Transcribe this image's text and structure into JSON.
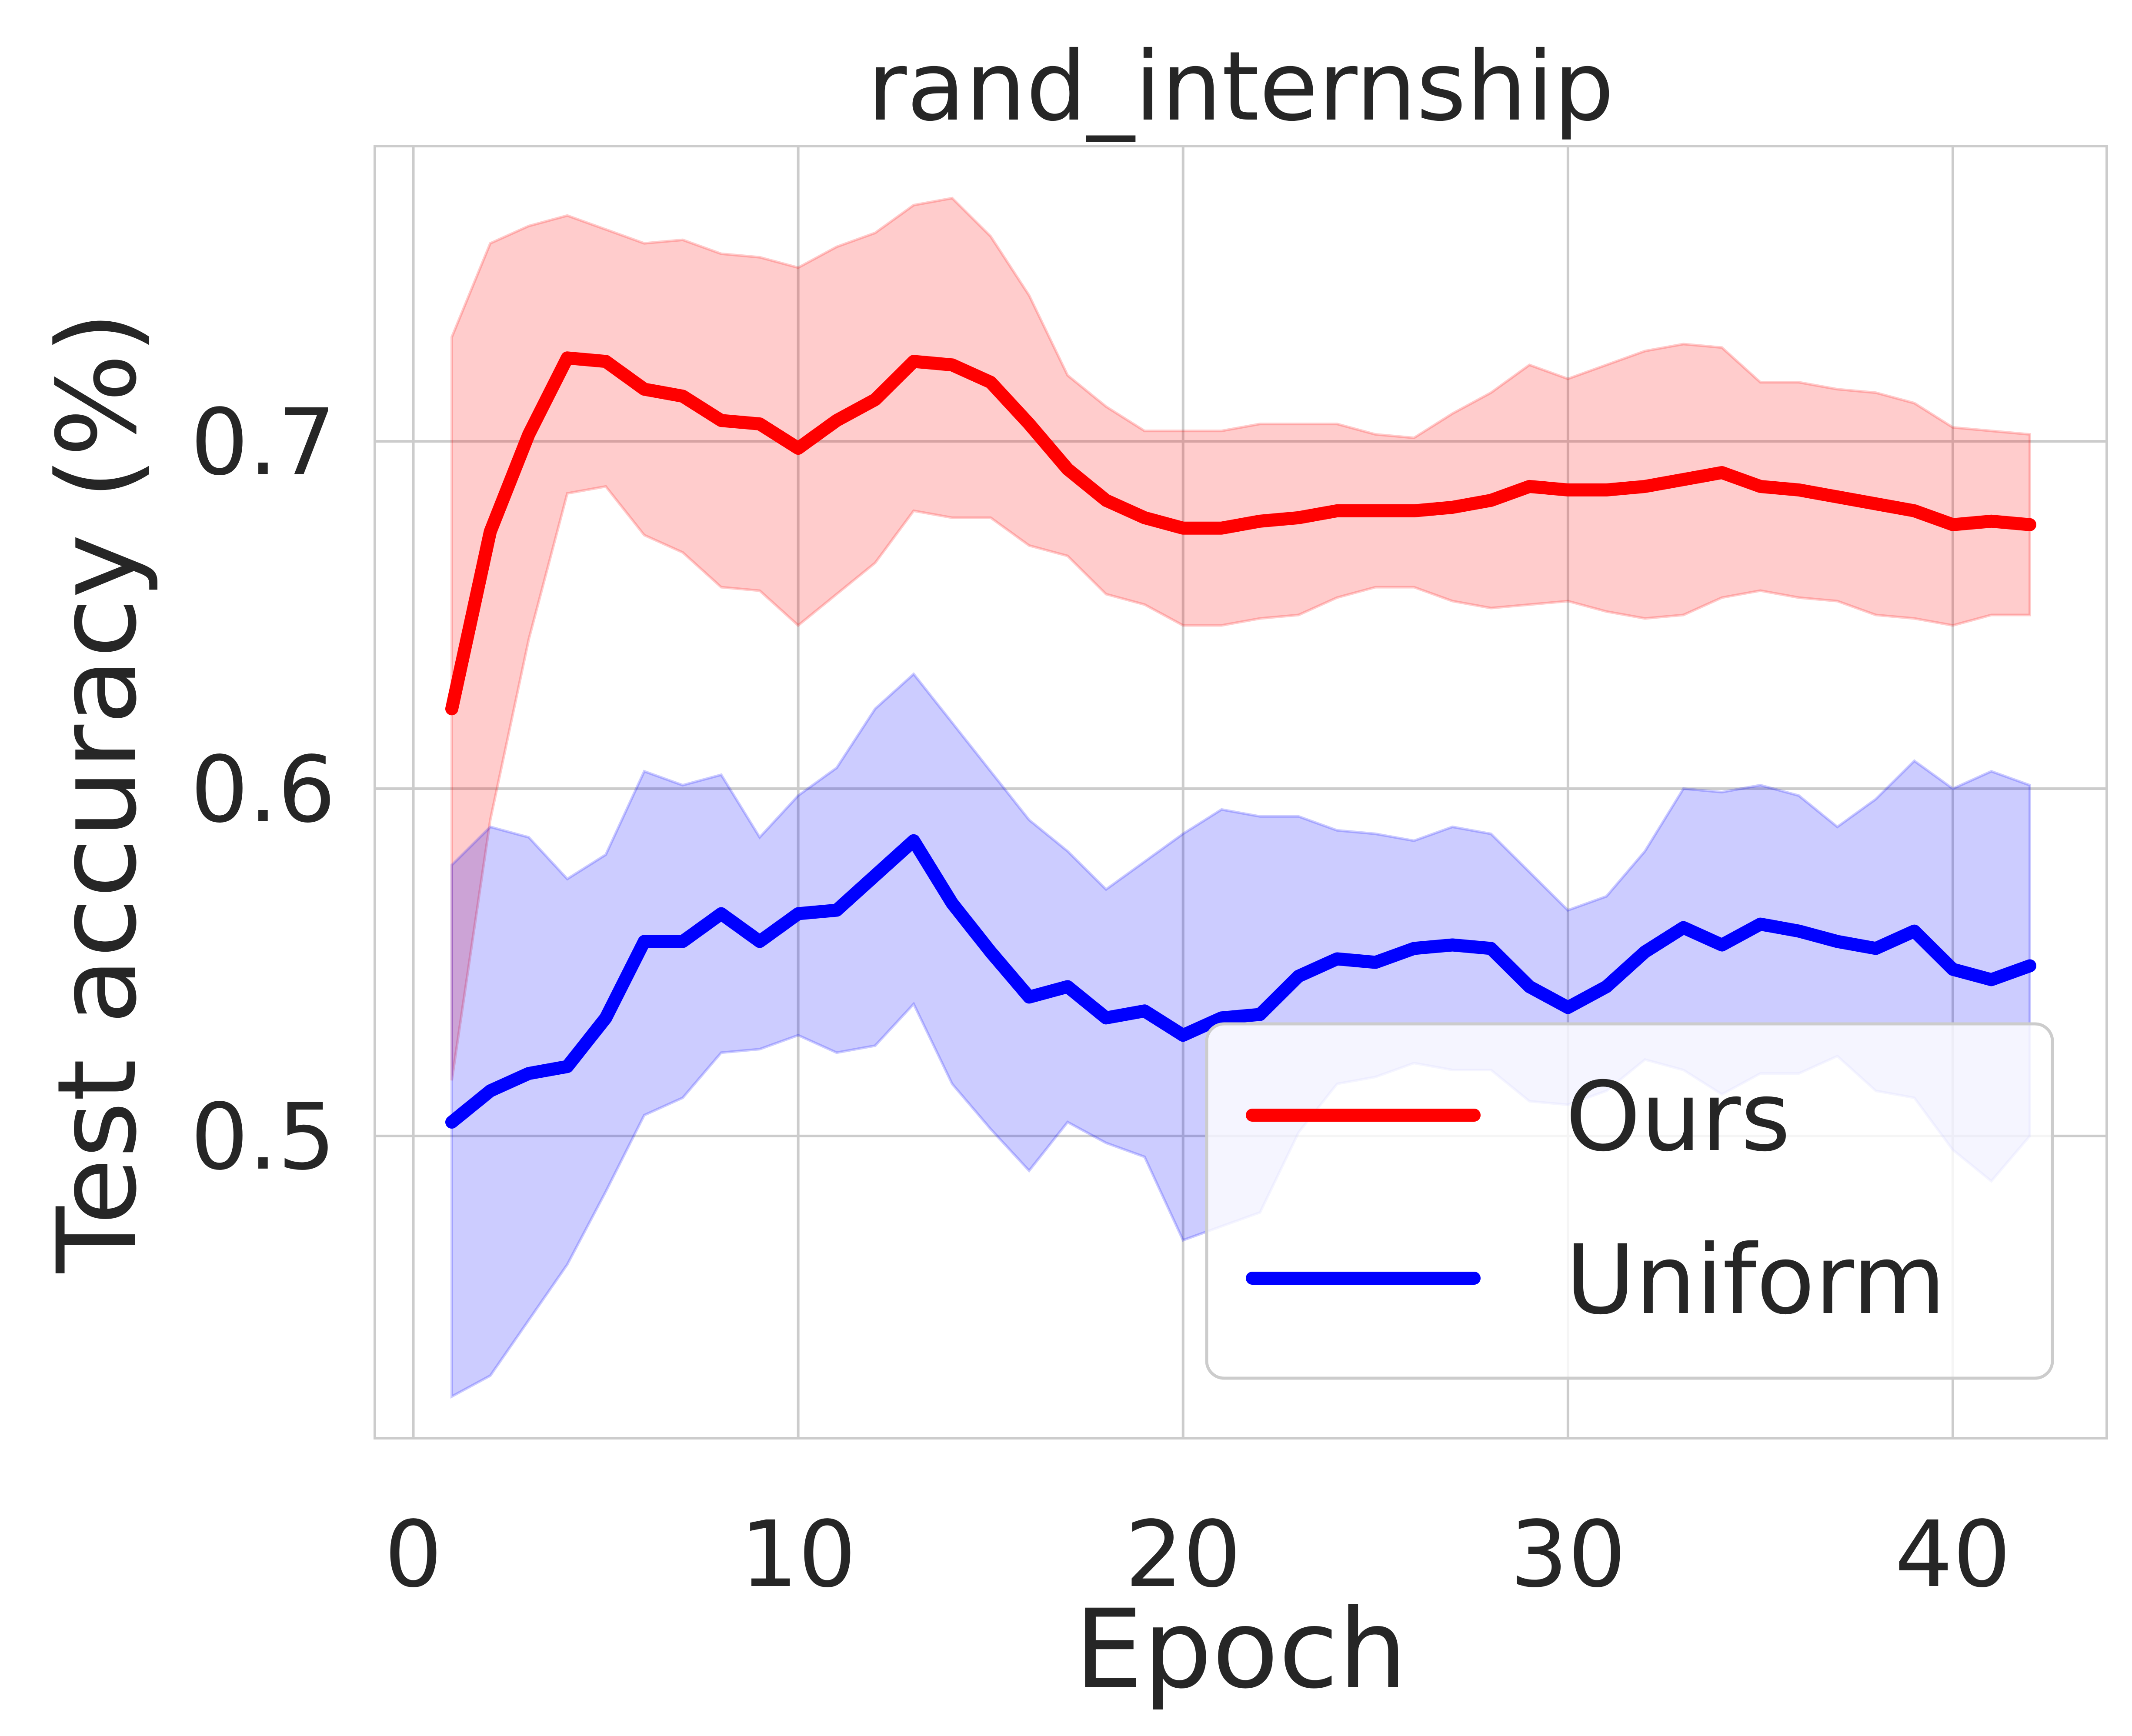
{
  "chart_data": {
    "type": "line",
    "title": "rand_internship",
    "xlabel": "Epoch",
    "ylabel": "Test accuracy (%)",
    "xlim": [
      -1,
      44
    ],
    "ylim": [
      0.413,
      0.785
    ],
    "xticks": [
      0,
      10,
      20,
      30,
      40
    ],
    "yticks": [
      0.5,
      0.6,
      0.7
    ],
    "xtick_labels": [
      "0",
      "10",
      "20",
      "30",
      "40"
    ],
    "ytick_labels": [
      "0.5",
      "0.6",
      "0.7"
    ],
    "grid": true,
    "legend_position": "lower right",
    "x": [
      1,
      2,
      3,
      4,
      5,
      6,
      7,
      8,
      9,
      10,
      11,
      12,
      13,
      14,
      15,
      16,
      17,
      18,
      19,
      20,
      21,
      22,
      23,
      24,
      25,
      26,
      27,
      28,
      29,
      30,
      31,
      32,
      33,
      34,
      35,
      36,
      37,
      38,
      39,
      40,
      41,
      42
    ],
    "series": [
      {
        "name": "Ours",
        "color": "#ff0000",
        "band_color": "#ff0000",
        "values": [
          0.623,
          0.674,
          0.702,
          0.724,
          0.723,
          0.715,
          0.713,
          0.706,
          0.705,
          0.698,
          0.706,
          0.712,
          0.723,
          0.722,
          0.717,
          0.705,
          0.692,
          0.683,
          0.678,
          0.675,
          0.675,
          0.677,
          0.678,
          0.68,
          0.68,
          0.68,
          0.681,
          0.683,
          0.687,
          0.686,
          0.686,
          0.687,
          0.689,
          0.691,
          0.687,
          0.686,
          0.684,
          0.682,
          0.68,
          0.676,
          0.677,
          0.676
        ],
        "upper": [
          0.73,
          0.757,
          0.762,
          0.765,
          0.761,
          0.757,
          0.758,
          0.754,
          0.753,
          0.75,
          0.756,
          0.76,
          0.768,
          0.77,
          0.759,
          0.742,
          0.719,
          0.71,
          0.703,
          0.703,
          0.703,
          0.705,
          0.705,
          0.705,
          0.702,
          0.701,
          0.708,
          0.714,
          0.722,
          0.718,
          0.722,
          0.726,
          0.728,
          0.727,
          0.717,
          0.717,
          0.715,
          0.714,
          0.711,
          0.704,
          0.703,
          0.702
        ],
        "lower": [
          0.516,
          0.591,
          0.643,
          0.685,
          0.687,
          0.673,
          0.668,
          0.658,
          0.657,
          0.647,
          0.656,
          0.665,
          0.68,
          0.678,
          0.678,
          0.67,
          0.667,
          0.656,
          0.653,
          0.647,
          0.647,
          0.649,
          0.65,
          0.655,
          0.658,
          0.658,
          0.654,
          0.652,
          0.653,
          0.654,
          0.651,
          0.649,
          0.65,
          0.655,
          0.657,
          0.655,
          0.654,
          0.65,
          0.649,
          0.647,
          0.65,
          0.65
        ]
      },
      {
        "name": "Uniform",
        "color": "#0000ff",
        "band_color": "#0000ff",
        "values": [
          0.504,
          0.513,
          0.518,
          0.52,
          0.534,
          0.556,
          0.556,
          0.564,
          0.556,
          0.564,
          0.565,
          0.575,
          0.585,
          0.567,
          0.553,
          0.54,
          0.543,
          0.534,
          0.536,
          0.529,
          0.534,
          0.535,
          0.546,
          0.551,
          0.55,
          0.554,
          0.555,
          0.554,
          0.543,
          0.537,
          0.543,
          0.553,
          0.56,
          0.555,
          0.561,
          0.559,
          0.556,
          0.554,
          0.559,
          0.548,
          0.545,
          0.549
        ],
        "upper": [
          0.578,
          0.589,
          0.586,
          0.574,
          0.581,
          0.605,
          0.601,
          0.604,
          0.586,
          0.598,
          0.606,
          0.623,
          0.633,
          0.619,
          0.605,
          0.591,
          0.582,
          0.571,
          0.579,
          0.587,
          0.594,
          0.592,
          0.592,
          0.588,
          0.587,
          0.585,
          0.589,
          0.587,
          0.576,
          0.565,
          0.569,
          0.582,
          0.6,
          0.599,
          0.601,
          0.598,
          0.589,
          0.597,
          0.608,
          0.6,
          0.605,
          0.601
        ],
        "lower": [
          0.425,
          0.431,
          0.447,
          0.463,
          0.484,
          0.506,
          0.511,
          0.524,
          0.525,
          0.529,
          0.524,
          0.526,
          0.538,
          0.515,
          0.502,
          0.49,
          0.504,
          0.498,
          0.494,
          0.47,
          0.474,
          0.478,
          0.501,
          0.515,
          0.517,
          0.521,
          0.519,
          0.519,
          0.51,
          0.509,
          0.513,
          0.522,
          0.519,
          0.512,
          0.518,
          0.518,
          0.523,
          0.513,
          0.511,
          0.496,
          0.487,
          0.5
        ]
      }
    ]
  }
}
